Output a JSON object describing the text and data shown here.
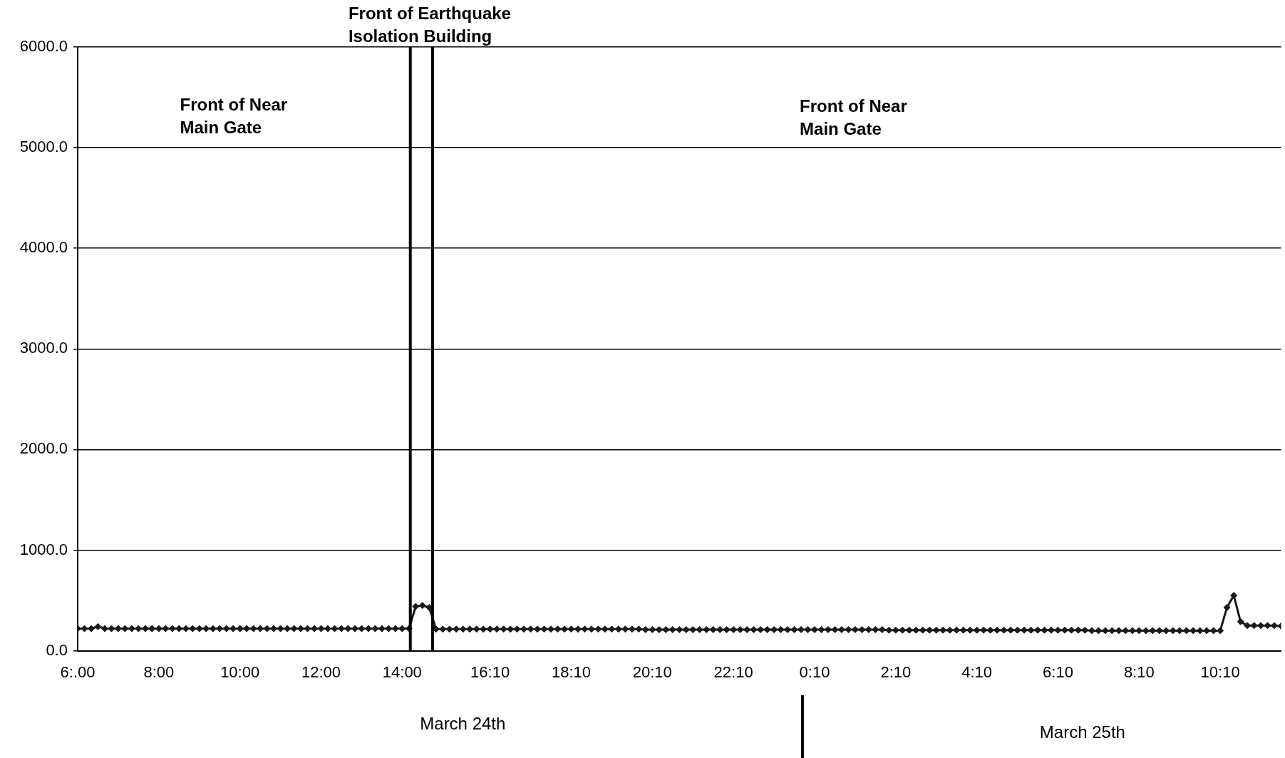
{
  "chart_data": {
    "type": "line",
    "x": [
      "--03-24T06:00",
      "--03-24T06:10",
      "--03-24T06:20",
      "--03-24T06:30",
      "--03-24T06:40",
      "--03-24T06:50",
      "--03-24T07:00",
      "--03-24T07:10",
      "--03-24T07:20",
      "--03-24T07:30",
      "--03-24T07:40",
      "--03-24T07:50",
      "--03-24T08:00",
      "--03-24T08:10",
      "--03-24T08:20",
      "--03-24T08:30",
      "--03-24T08:40",
      "--03-24T08:50",
      "--03-24T09:00",
      "--03-24T09:10",
      "--03-24T09:20",
      "--03-24T09:30",
      "--03-24T09:40",
      "--03-24T09:50",
      "--03-24T10:00",
      "--03-24T10:10",
      "--03-24T10:20",
      "--03-24T10:30",
      "--03-24T10:40",
      "--03-24T10:50",
      "--03-24T11:00",
      "--03-24T11:10",
      "--03-24T11:20",
      "--03-24T11:30",
      "--03-24T11:40",
      "--03-24T11:50",
      "--03-24T12:00",
      "--03-24T12:10",
      "--03-24T12:20",
      "--03-24T12:30",
      "--03-24T12:40",
      "--03-24T12:50",
      "--03-24T13:00",
      "--03-24T13:10",
      "--03-24T13:20",
      "--03-24T13:30",
      "--03-24T13:40",
      "--03-24T13:50",
      "--03-24T14:00",
      "--03-24T14:10",
      "--03-24T14:20",
      "--03-24T14:30",
      "--03-24T14:40",
      "--03-24T14:50",
      "--03-24T15:00",
      "--03-24T15:10",
      "--03-24T15:20",
      "--03-24T15:30",
      "--03-24T15:40",
      "--03-24T15:50",
      "--03-24T16:00",
      "--03-24T16:10",
      "--03-24T16:20",
      "--03-24T16:30",
      "--03-24T16:40",
      "--03-24T16:50",
      "--03-24T17:00",
      "--03-24T17:10",
      "--03-24T17:20",
      "--03-24T17:30",
      "--03-24T17:40",
      "--03-24T17:50",
      "--03-24T18:00",
      "--03-24T18:10",
      "--03-24T18:20",
      "--03-24T18:30",
      "--03-24T18:40",
      "--03-24T18:50",
      "--03-24T19:00",
      "--03-24T19:10",
      "--03-24T19:20",
      "--03-24T19:30",
      "--03-24T19:40",
      "--03-24T19:50",
      "--03-24T20:00",
      "--03-24T20:10",
      "--03-24T20:20",
      "--03-24T20:30",
      "--03-24T20:40",
      "--03-24T20:50",
      "--03-24T21:00",
      "--03-24T21:10",
      "--03-24T21:20",
      "--03-24T21:30",
      "--03-24T21:40",
      "--03-24T21:50",
      "--03-24T22:00",
      "--03-24T22:10",
      "--03-24T22:20",
      "--03-24T22:30",
      "--03-24T22:40",
      "--03-24T22:50",
      "--03-24T23:00",
      "--03-24T23:10",
      "--03-24T23:20",
      "--03-24T23:30",
      "--03-24T23:40",
      "--03-24T23:50",
      "--03-25T00:00",
      "--03-25T00:10",
      "--03-25T00:20",
      "--03-25T00:30",
      "--03-25T00:40",
      "--03-25T00:50",
      "--03-25T01:00",
      "--03-25T01:10",
      "--03-25T01:20",
      "--03-25T01:30",
      "--03-25T01:40",
      "--03-25T01:50",
      "--03-25T02:00",
      "--03-25T02:10",
      "--03-25T02:20",
      "--03-25T02:30",
      "--03-25T02:40",
      "--03-25T02:50",
      "--03-25T03:00",
      "--03-25T03:10",
      "--03-25T03:20",
      "--03-25T03:30",
      "--03-25T03:40",
      "--03-25T03:50",
      "--03-25T04:00",
      "--03-25T04:10",
      "--03-25T04:20",
      "--03-25T04:30",
      "--03-25T04:40",
      "--03-25T04:50",
      "--03-25T05:00",
      "--03-25T05:10",
      "--03-25T05:20",
      "--03-25T05:30",
      "--03-25T05:40",
      "--03-25T05:50",
      "--03-25T06:00",
      "--03-25T06:10",
      "--03-25T06:20",
      "--03-25T06:30",
      "--03-25T06:40",
      "--03-25T06:50",
      "--03-25T07:00",
      "--03-25T07:10",
      "--03-25T07:20",
      "--03-25T07:30",
      "--03-25T07:40",
      "--03-25T07:50",
      "--03-25T08:00",
      "--03-25T08:10",
      "--03-25T08:20",
      "--03-25T08:30",
      "--03-25T08:40",
      "--03-25T08:50",
      "--03-25T09:00",
      "--03-25T09:10",
      "--03-25T09:20",
      "--03-25T09:30",
      "--03-25T09:40",
      "--03-25T09:50",
      "--03-25T10:00",
      "--03-25T10:10",
      "--03-25T10:20",
      "--03-25T10:30",
      "--03-25T10:40",
      "--03-25T10:50",
      "--03-25T11:00",
      "--03-25T11:10",
      "--03-25T11:20",
      "--03-25T11:30",
      "--03-25T11:40"
    ],
    "series": [
      {
        "color": "#1a1a1a",
        "values": [
          220,
          220,
          220,
          240,
          220,
          220,
          220,
          220,
          220,
          220,
          220,
          220,
          220,
          220,
          220,
          220,
          220,
          220,
          220,
          220,
          220,
          220,
          220,
          220,
          220,
          220,
          220,
          220,
          220,
          220,
          220,
          220,
          220,
          220,
          220,
          220,
          220,
          220,
          220,
          220,
          220,
          220,
          220,
          220,
          220,
          220,
          220,
          220,
          220,
          220,
          440,
          450,
          430,
          215,
          215,
          215,
          215,
          215,
          215,
          215,
          215,
          215,
          215,
          215,
          215,
          215,
          215,
          215,
          215,
          215,
          215,
          215,
          215,
          215,
          215,
          215,
          215,
          215,
          215,
          215,
          215,
          215,
          215,
          215,
          210,
          210,
          210,
          210,
          210,
          210,
          210,
          210,
          210,
          210,
          210,
          210,
          210,
          210,
          210,
          210,
          210,
          210,
          210,
          210,
          210,
          210,
          210,
          210,
          210,
          210,
          210,
          210,
          210,
          210,
          210,
          210,
          210,
          210,
          210,
          210,
          205,
          205,
          205,
          205,
          205,
          205,
          205,
          205,
          205,
          205,
          205,
          205,
          205,
          205,
          205,
          205,
          205,
          205,
          205,
          205,
          205,
          205,
          205,
          205,
          205,
          205,
          205,
          205,
          205,
          205,
          200,
          200,
          200,
          200,
          200,
          200,
          200,
          200,
          200,
          200,
          200,
          200,
          200,
          200,
          200,
          200,
          200,
          200,
          200,
          200,
          430,
          550,
          290,
          250,
          250,
          250,
          250,
          250,
          245
        ]
      }
    ],
    "xlim": [
      "--03-24T06:00",
      "--03-25T11:40"
    ],
    "xticks": [
      {
        "value": "--03-24T06:00",
        "label": "6:.00"
      },
      {
        "value": "--03-24T08:00",
        "label": "8:00"
      },
      {
        "value": "--03-24T10:00",
        "label": "10:00"
      },
      {
        "value": "--03-24T12:00",
        "label": "12:00"
      },
      {
        "value": "--03-24T14:00",
        "label": "14:00"
      },
      {
        "value": "--03-24T16:10",
        "label": "16:10"
      },
      {
        "value": "--03-24T18:10",
        "label": "18:10"
      },
      {
        "value": "--03-24T20:10",
        "label": "20:10"
      },
      {
        "value": "--03-24T22:10",
        "label": "22:10"
      },
      {
        "value": "--03-25T00:10",
        "label": "0:10"
      },
      {
        "value": "--03-25T02:10",
        "label": "2:10"
      },
      {
        "value": "--03-25T04:10",
        "label": "4:10"
      },
      {
        "value": "--03-25T06:10",
        "label": "6:10"
      },
      {
        "value": "--03-25T08:10",
        "label": "8:10"
      },
      {
        "value": "--03-25T10:10",
        "label": "10:10"
      }
    ],
    "ylim": [
      0,
      6000
    ],
    "yticks": [
      {
        "value": 0,
        "label": "0.0"
      },
      {
        "value": 1000,
        "label": "1000.0"
      },
      {
        "value": 2000,
        "label": "2000.0"
      },
      {
        "value": 3000,
        "label": "3000.0"
      },
      {
        "value": 4000,
        "label": "4000.0"
      },
      {
        "value": 5000,
        "label": "5000.0"
      },
      {
        "value": 6000,
        "label": "6000.0"
      }
    ],
    "grid": "y",
    "legend": false,
    "marker": "diamond",
    "line_style": "solid",
    "ref_lines": [
      {
        "axis": "x",
        "value": "--03-24T14:12",
        "color": "#000000"
      },
      {
        "axis": "x",
        "value": "--03-24T14:45",
        "color": "#000000"
      }
    ],
    "annotations": [
      "Front of Near\nMain Gate",
      "Front of Earthquake\nIsolation Building",
      "Front of Near\nMain Gate",
      "March 24th",
      "March 25th"
    ]
  }
}
